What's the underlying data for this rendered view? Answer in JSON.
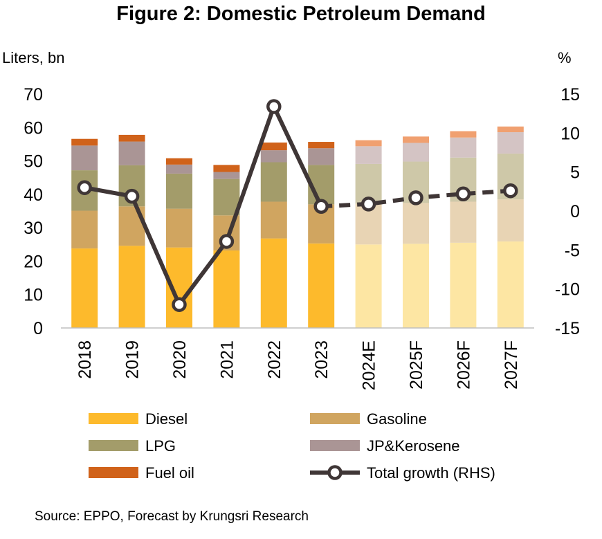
{
  "chart_data": {
    "type": "bar",
    "stacked": true,
    "title": "Figure 2: Domestic Petroleum Demand",
    "ylabel_left": "Liters, bn",
    "ylabel_right": "%",
    "categories": [
      "2018",
      "2019",
      "2020",
      "2021",
      "2022",
      "2023",
      "2024E",
      "2025F",
      "2026F",
      "2027F"
    ],
    "forecast_categories": [
      "2024E",
      "2025F",
      "2026F",
      "2027F"
    ],
    "ylim_left": [
      0,
      70
    ],
    "yticks_left": [
      "0",
      "10",
      "20",
      "30",
      "40",
      "50",
      "60",
      "70"
    ],
    "ylim_right": [
      -15,
      15
    ],
    "yticks_right": [
      "-15",
      "-10",
      "-5",
      "0",
      "5",
      "10",
      "15"
    ],
    "series": [
      {
        "name": "Diesel",
        "color": "#FDBA2C",
        "forecast_color": "#FDE6A3",
        "values": [
          23.8,
          24.6,
          24.1,
          23.2,
          26.8,
          25.3,
          25.0,
          25.2,
          25.5,
          25.9
        ]
      },
      {
        "name": "Gasoline",
        "color": "#D0A560",
        "forecast_color": "#E8D4B4",
        "values": [
          11.3,
          11.8,
          11.6,
          10.5,
          11.0,
          11.7,
          12.2,
          12.2,
          12.3,
          12.6
        ]
      },
      {
        "name": "LPG",
        "color": "#A39C6A",
        "forecast_color": "#CEC8A8",
        "values": [
          12.1,
          12.3,
          10.5,
          10.9,
          11.8,
          11.8,
          11.9,
          12.4,
          13.2,
          13.7
        ]
      },
      {
        "name": "JP&Kerosene",
        "color": "#AA9595",
        "forecast_color": "#D4C4C4",
        "values": [
          7.4,
          7.1,
          2.7,
          2.1,
          3.6,
          5.0,
          5.3,
          5.6,
          6.0,
          6.4
        ]
      },
      {
        "name": "Fuel oil",
        "color": "#D0621A",
        "forecast_color": "#F0A070",
        "values": [
          2.0,
          2.0,
          1.9,
          2.1,
          2.3,
          1.9,
          1.8,
          1.9,
          1.9,
          1.7
        ]
      }
    ],
    "line_series": {
      "name": "Total growth (RHS)",
      "color": "#3F3636",
      "axis": "right",
      "values": [
        3.0,
        1.9,
        -12.0,
        -3.9,
        13.4,
        0.6,
        0.9,
        1.7,
        2.2,
        2.6
      ]
    },
    "legend_position": "bottom",
    "grid": false
  },
  "source": "Source: EPPO, Forecast by Krungsri Research"
}
